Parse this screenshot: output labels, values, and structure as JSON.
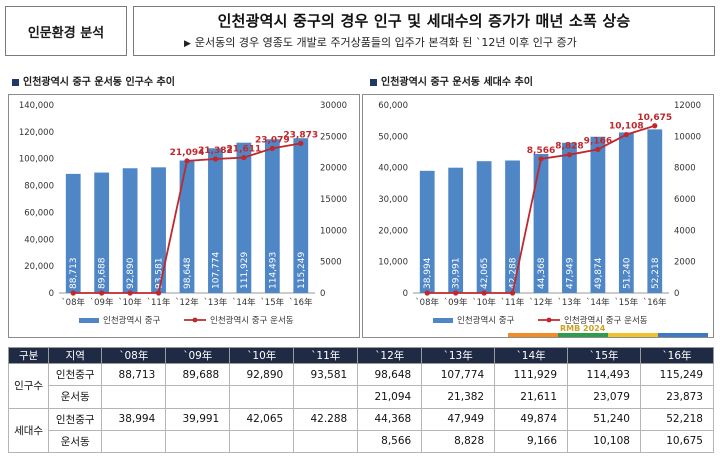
{
  "header": {
    "tag": "인문환경 분석",
    "title": "인천광역시 중구의 경우 인구 및 세대수의 증가가 매년 소폭 상승",
    "subtitle_marker": "▶",
    "subtitle": "운서동의 경우 영종도 개발로 주거상품들의 입주가 본격화 된 `12년 이후 인구 증가"
  },
  "watermark": "RMB 2024",
  "colors": {
    "bar": "#4f86c6",
    "line": "#c0282d",
    "header_bg": "#1f2a44",
    "strip": [
      "#f28c28",
      "#2e9c4e",
      "#f2c12e",
      "#3e78c2"
    ]
  },
  "chart_data": [
    {
      "type": "bar",
      "title": "인천광역시 중구 운서동 인구수 추이",
      "categories": [
        "`08年",
        "`09年",
        "`10年",
        "`11年",
        "`12年",
        "`13年",
        "`14年",
        "`15年",
        "`16年"
      ],
      "ylim": [
        0,
        140000
      ],
      "y2lim": [
        0,
        30000
      ],
      "y_ticks": [
        "0",
        "20,000",
        "40,000",
        "60,000",
        "80,000",
        "100,000",
        "120,000",
        "140,000"
      ],
      "y2_ticks": [
        "0",
        "5000",
        "10000",
        "15000",
        "20000",
        "25000",
        "30000"
      ],
      "series": [
        {
          "name": "인천광역시 중구",
          "kind": "bar",
          "axis": "left",
          "values": [
            88713,
            89688,
            92890,
            93581,
            98648,
            107774,
            111929,
            114493,
            115249
          ],
          "labels": [
            "88,713",
            "89,688",
            "92,890",
            "93,581",
            "98,648",
            "107,774",
            "111,929",
            "114,493",
            "115,249"
          ]
        },
        {
          "name": "인천광역시 중구 운서동",
          "kind": "line",
          "axis": "right",
          "values": [
            0,
            0,
            0,
            0,
            21094,
            21382,
            21611,
            23079,
            23873
          ],
          "labels": [
            "",
            "",
            "",
            "",
            "21,094",
            "21,382",
            "21,611",
            "23,079",
            "23,873"
          ]
        }
      ],
      "legend": "bottom",
      "grid": false
    },
    {
      "type": "bar",
      "title": "인천광역시 중구 운서동 세대수 추이",
      "categories": [
        "`08年",
        "`09年",
        "`10年",
        "`11年",
        "`12年",
        "`13年",
        "`14年",
        "`15年",
        "`16年"
      ],
      "ylim": [
        0,
        60000
      ],
      "y2lim": [
        0,
        12000
      ],
      "y_ticks": [
        "0",
        "10,000",
        "20,000",
        "30,000",
        "40,000",
        "50,000",
        "60,000"
      ],
      "y2_ticks": [
        "0",
        "2000",
        "4000",
        "6000",
        "8000",
        "10000",
        "12000"
      ],
      "series": [
        {
          "name": "인천광역시 중구",
          "kind": "bar",
          "axis": "left",
          "values": [
            38994,
            39991,
            42065,
            42288,
            44368,
            47949,
            49874,
            51240,
            52218
          ],
          "labels": [
            "38,994",
            "39,991",
            "42,065",
            "42,288",
            "44,368",
            "47,949",
            "49,874",
            "51,240",
            "52,218"
          ]
        },
        {
          "name": "인천광역시 중구 운서동",
          "kind": "line",
          "axis": "right",
          "values": [
            0,
            0,
            0,
            0,
            8566,
            8828,
            9166,
            10108,
            10675
          ],
          "labels": [
            "",
            "",
            "",
            "",
            "8,566",
            "8,828",
            "9,166",
            "10,108",
            "10,675"
          ]
        }
      ],
      "legend": "bottom",
      "grid": false
    }
  ],
  "table": {
    "headers": [
      "구분",
      "지역",
      "`08年",
      "`09年",
      "`10年",
      "`11年",
      "`12年",
      "`13年",
      "`14年",
      "`15年",
      "`16年"
    ],
    "groups": [
      {
        "label": "인구수",
        "rows": [
          {
            "region": "인천중구",
            "values": [
              "88,713",
              "89,688",
              "92,890",
              "93,581",
              "98,648",
              "107,774",
              "111,929",
              "114,493",
              "115,249"
            ]
          },
          {
            "region": "운서동",
            "values": [
              "",
              "",
              "",
              "",
              "21,094",
              "21,382",
              "21,611",
              "23,079",
              "23,873"
            ]
          }
        ]
      },
      {
        "label": "세대수",
        "rows": [
          {
            "region": "인천중구",
            "values": [
              "38,994",
              "39,991",
              "42,065",
              "42.288",
              "44,368",
              "47,949",
              "49,874",
              "51,240",
              "52,218"
            ]
          },
          {
            "region": "운서동",
            "values": [
              "",
              "",
              "",
              "",
              "8,566",
              "8,828",
              "9,166",
              "10,108",
              "10,675"
            ]
          }
        ]
      }
    ]
  }
}
